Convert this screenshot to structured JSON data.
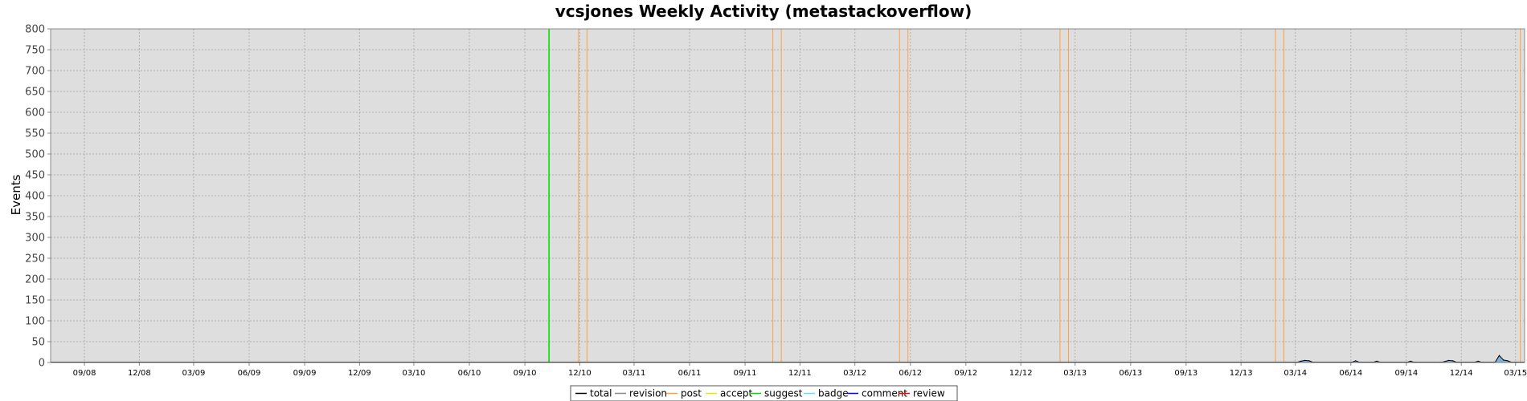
{
  "chart_data": {
    "type": "area",
    "title": "vcsjones Weekly Activity (metastackoverflow)",
    "ylabel": "Events",
    "xlabel": "",
    "ylim": [
      0,
      800
    ],
    "y_ticks": [
      0,
      50,
      100,
      150,
      200,
      250,
      300,
      350,
      400,
      450,
      500,
      550,
      600,
      650,
      700,
      750,
      800
    ],
    "x_range": [
      "2008-07-07",
      "2015-03-16"
    ],
    "x_ticks": [
      {
        "label": "09/08",
        "date": "2008-09-01"
      },
      {
        "label": "12/08",
        "date": "2008-12-01"
      },
      {
        "label": "03/09",
        "date": "2009-03-01"
      },
      {
        "label": "06/09",
        "date": "2009-06-01"
      },
      {
        "label": "09/09",
        "date": "2009-09-01"
      },
      {
        "label": "12/09",
        "date": "2009-12-01"
      },
      {
        "label": "03/10",
        "date": "2010-03-01"
      },
      {
        "label": "06/10",
        "date": "2010-06-01"
      },
      {
        "label": "09/10",
        "date": "2010-09-01"
      },
      {
        "label": "12/10",
        "date": "2010-12-01"
      },
      {
        "label": "03/11",
        "date": "2011-03-01"
      },
      {
        "label": "06/11",
        "date": "2011-06-01"
      },
      {
        "label": "09/11",
        "date": "2011-09-01"
      },
      {
        "label": "12/11",
        "date": "2011-12-01"
      },
      {
        "label": "03/12",
        "date": "2012-03-01"
      },
      {
        "label": "06/12",
        "date": "2012-06-01"
      },
      {
        "label": "09/12",
        "date": "2012-09-01"
      },
      {
        "label": "12/12",
        "date": "2012-12-01"
      },
      {
        "label": "03/13",
        "date": "2013-03-01"
      },
      {
        "label": "06/13",
        "date": "2013-06-01"
      },
      {
        "label": "09/13",
        "date": "2013-09-01"
      },
      {
        "label": "12/13",
        "date": "2013-12-01"
      },
      {
        "label": "03/14",
        "date": "2014-03-01"
      },
      {
        "label": "06/14",
        "date": "2014-06-01"
      },
      {
        "label": "09/14",
        "date": "2014-09-01"
      },
      {
        "label": "12/14",
        "date": "2014-12-01"
      },
      {
        "label": "03/15",
        "date": "2015-03-01"
      }
    ],
    "grid": true,
    "legend_position": "bottom",
    "series": [
      {
        "name": "total",
        "color": "#000000"
      },
      {
        "name": "revision",
        "color": "#888888"
      },
      {
        "name": "post",
        "color": "#FFA040"
      },
      {
        "name": "accept",
        "color": "#E8E800"
      },
      {
        "name": "suggest",
        "color": "#00E000"
      },
      {
        "name": "badge",
        "color": "#60E0FF"
      },
      {
        "name": "comment",
        "color": "#0000FF"
      },
      {
        "name": "review",
        "color": "#FF0000"
      }
    ],
    "markers": [
      {
        "series": "suggest",
        "date": "2010-10-11"
      },
      {
        "series": "post",
        "date": "2010-11-29"
      },
      {
        "series": "post",
        "date": "2010-12-13"
      },
      {
        "series": "post",
        "date": "2011-10-17"
      },
      {
        "series": "post",
        "date": "2011-10-31"
      },
      {
        "series": "post",
        "date": "2012-05-14"
      },
      {
        "series": "post",
        "date": "2012-05-28"
      },
      {
        "series": "post",
        "date": "2013-02-04"
      },
      {
        "series": "post",
        "date": "2013-02-18"
      },
      {
        "series": "post",
        "date": "2014-01-27"
      },
      {
        "series": "post",
        "date": "2014-02-10"
      },
      {
        "series": "post",
        "date": "2015-03-09"
      }
    ],
    "activity": [
      {
        "date": "2014-03-03",
        "value": 0
      },
      {
        "date": "2014-03-10",
        "value": 3
      },
      {
        "date": "2014-03-17",
        "value": 5
      },
      {
        "date": "2014-03-24",
        "value": 4
      },
      {
        "date": "2014-03-31",
        "value": 0
      },
      {
        "date": "2014-06-02",
        "value": 0
      },
      {
        "date": "2014-06-09",
        "value": 4
      },
      {
        "date": "2014-06-16",
        "value": 0
      },
      {
        "date": "2014-07-07",
        "value": 0
      },
      {
        "date": "2014-07-14",
        "value": 3
      },
      {
        "date": "2014-07-21",
        "value": 0
      },
      {
        "date": "2014-09-01",
        "value": 0
      },
      {
        "date": "2014-09-08",
        "value": 3
      },
      {
        "date": "2014-09-15",
        "value": 0
      },
      {
        "date": "2014-10-27",
        "value": 0
      },
      {
        "date": "2014-11-03",
        "value": 2
      },
      {
        "date": "2014-11-10",
        "value": 5
      },
      {
        "date": "2014-11-17",
        "value": 4
      },
      {
        "date": "2014-11-24",
        "value": 0
      },
      {
        "date": "2014-12-22",
        "value": 0
      },
      {
        "date": "2014-12-29",
        "value": 3
      },
      {
        "date": "2015-01-05",
        "value": 0
      },
      {
        "date": "2015-01-26",
        "value": 0
      },
      {
        "date": "2015-02-02",
        "value": 17
      },
      {
        "date": "2015-02-09",
        "value": 6
      },
      {
        "date": "2015-02-16",
        "value": 4
      },
      {
        "date": "2015-02-23",
        "value": 0
      }
    ]
  }
}
